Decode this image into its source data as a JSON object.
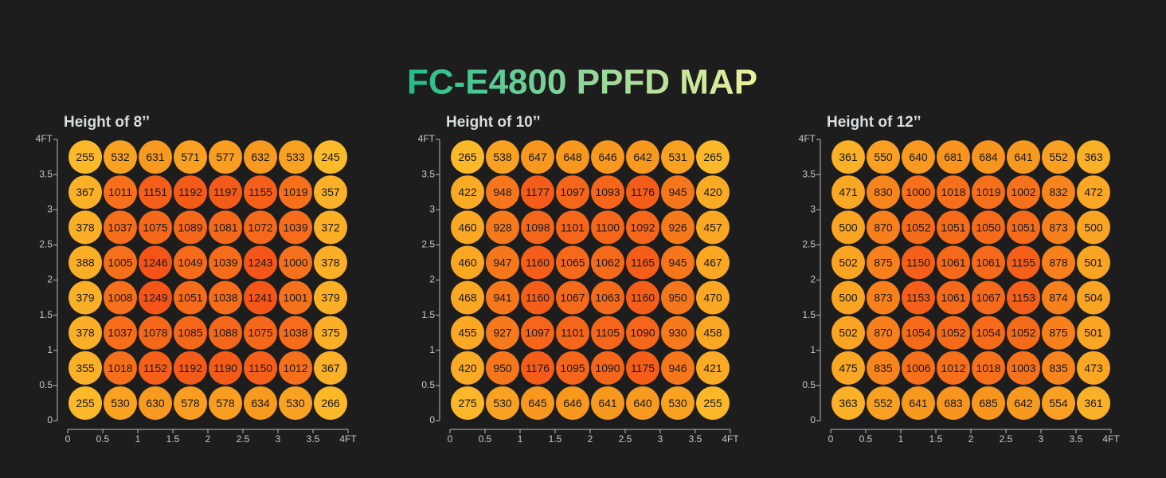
{
  "title": "FC-E4800 PPFD MAP",
  "chart_data": [
    {
      "type": "heatmap",
      "title": "Height of 8’’",
      "xlim": [
        0,
        4
      ],
      "ylim": [
        0,
        4
      ],
      "xticks": [
        0,
        0.5,
        1,
        1.5,
        2,
        2.5,
        3,
        3.5,
        {
          "value": 4,
          "label": "4FT"
        }
      ],
      "yticks": [
        0,
        0.5,
        1,
        1.5,
        2,
        2.5,
        3,
        3.5,
        {
          "value": 4,
          "label": "4FT"
        }
      ],
      "values": [
        [
          255,
          532,
          631,
          571,
          577,
          632,
          533,
          245
        ],
        [
          367,
          1011,
          1151,
          1192,
          1197,
          1155,
          1019,
          357
        ],
        [
          378,
          1037,
          1075,
          1089,
          1081,
          1072,
          1039,
          372
        ],
        [
          388,
          1005,
          1246,
          1049,
          1039,
          1243,
          1000,
          378
        ],
        [
          379,
          1008,
          1249,
          1051,
          1038,
          1241,
          1001,
          379
        ],
        [
          378,
          1037,
          1078,
          1085,
          1088,
          1075,
          1038,
          375
        ],
        [
          355,
          1018,
          1152,
          1192,
          1190,
          1150,
          1012,
          367
        ],
        [
          255,
          530,
          630,
          578,
          578,
          634,
          530,
          266
        ]
      ]
    },
    {
      "type": "heatmap",
      "title": "Height of 10’’",
      "xlim": [
        0,
        4
      ],
      "ylim": [
        0,
        4
      ],
      "xticks": [
        0,
        0.5,
        1,
        1.5,
        2,
        2.5,
        3,
        3.5,
        {
          "value": 4,
          "label": "4FT"
        }
      ],
      "yticks": [
        0,
        0.5,
        1,
        1.5,
        2,
        2.5,
        3,
        3.5,
        {
          "value": 4,
          "label": "4FT"
        }
      ],
      "values": [
        [
          265,
          538,
          647,
          648,
          646,
          642,
          531,
          265
        ],
        [
          422,
          948,
          1177,
          1097,
          1093,
          1176,
          945,
          420
        ],
        [
          460,
          928,
          1098,
          1101,
          1100,
          1092,
          926,
          457
        ],
        [
          460,
          947,
          1160,
          1065,
          1062,
          1165,
          945,
          467
        ],
        [
          468,
          941,
          1160,
          1067,
          1063,
          1160,
          950,
          470
        ],
        [
          455,
          927,
          1097,
          1101,
          1105,
          1090,
          930,
          458
        ],
        [
          420,
          950,
          1176,
          1095,
          1090,
          1175,
          946,
          421
        ],
        [
          275,
          530,
          645,
          646,
          641,
          640,
          530,
          255
        ]
      ]
    },
    {
      "type": "heatmap",
      "title": "Height of 12’’",
      "xlim": [
        0,
        4
      ],
      "ylim": [
        0,
        4
      ],
      "xticks": [
        0,
        0.5,
        1,
        1.5,
        2,
        2.5,
        3,
        3.5,
        {
          "value": 4,
          "label": "4FT"
        }
      ],
      "yticks": [
        0,
        0.5,
        1,
        1.5,
        2,
        2.5,
        3,
        3.5,
        {
          "value": 4,
          "label": "4FT"
        }
      ],
      "values": [
        [
          361,
          550,
          640,
          681,
          684,
          641,
          552,
          363
        ],
        [
          471,
          830,
          1000,
          1018,
          1019,
          1002,
          832,
          472
        ],
        [
          500,
          870,
          1052,
          1051,
          1050,
          1051,
          873,
          500
        ],
        [
          502,
          875,
          1150,
          1061,
          1061,
          1155,
          878,
          501
        ],
        [
          500,
          873,
          1153,
          1061,
          1067,
          1153,
          874,
          504
        ],
        [
          502,
          870,
          1054,
          1052,
          1054,
          1052,
          875,
          501
        ],
        [
          475,
          835,
          1006,
          1012,
          1018,
          1003,
          835,
          473
        ],
        [
          363,
          552,
          641,
          683,
          685,
          642,
          554,
          361
        ]
      ]
    }
  ]
}
